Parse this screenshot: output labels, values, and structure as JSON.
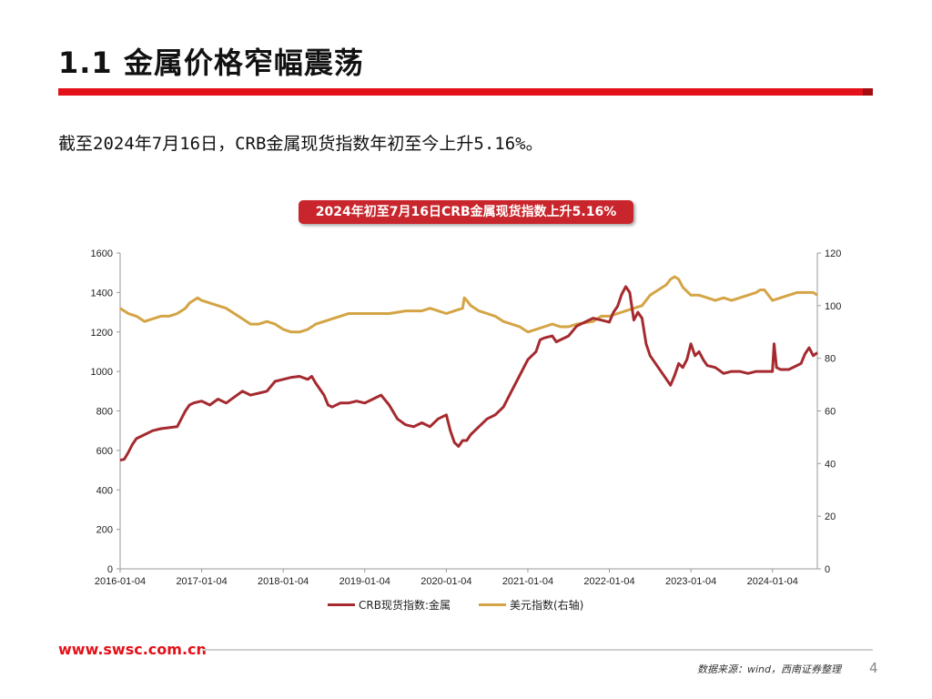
{
  "header": {
    "title": "1.1 金属价格窄幅震荡",
    "description": "截至2024年7月16日，CRB金属现货指数年初至今上升5.16%。"
  },
  "chart_badge": "2024年初至7月16日CRB金属现货指数上升5.16%",
  "footer": {
    "url": "www.swsc.com.cn",
    "source": "数据来源：wind，西南证券整理",
    "page": "4"
  },
  "colors": {
    "accent": "#e3111a",
    "crb_line": "#a52a2f",
    "usd_line": "#d4a445"
  },
  "chart_data": {
    "type": "line",
    "title": "2024年初至7月16日CRB金属现货指数上升5.16%",
    "x_tick_labels": [
      "2016-01-04",
      "2017-01-04",
      "2018-01-04",
      "2019-01-04",
      "2020-01-04",
      "2021-01-04",
      "2022-01-04",
      "2023-01-04",
      "2024-01-04"
    ],
    "x_range": [
      2016.0,
      2024.55
    ],
    "left_axis": {
      "ylim": [
        0,
        1600
      ],
      "ticks": [
        0,
        200,
        400,
        600,
        800,
        1000,
        1200,
        1400,
        1600
      ]
    },
    "right_axis": {
      "ylim": [
        0,
        120
      ],
      "ticks": [
        0,
        20,
        40,
        60,
        80,
        100,
        120
      ]
    },
    "legend_position": "bottom",
    "series": [
      {
        "name": "CRB现货指数:金属",
        "axis": "left",
        "x": [
          2016.0,
          2016.05,
          2016.1,
          2016.15,
          2016.2,
          2016.3,
          2016.4,
          2016.5,
          2016.6,
          2016.7,
          2016.8,
          2016.85,
          2016.9,
          2016.95,
          2017.0,
          2017.1,
          2017.2,
          2017.3,
          2017.4,
          2017.5,
          2017.6,
          2017.7,
          2017.8,
          2017.9,
          2018.0,
          2018.05,
          2018.1,
          2018.2,
          2018.3,
          2018.35,
          2018.4,
          2018.5,
          2018.55,
          2018.6,
          2018.7,
          2018.8,
          2018.9,
          2019.0,
          2019.1,
          2019.2,
          2019.3,
          2019.4,
          2019.5,
          2019.6,
          2019.7,
          2019.8,
          2019.9,
          2020.0,
          2020.05,
          2020.1,
          2020.15,
          2020.2,
          2020.25,
          2020.3,
          2020.4,
          2020.5,
          2020.6,
          2020.7,
          2020.8,
          2020.9,
          2021.0,
          2021.1,
          2021.15,
          2021.2,
          2021.3,
          2021.35,
          2021.4,
          2021.5,
          2021.6,
          2021.7,
          2021.8,
          2021.9,
          2022.0,
          2022.05,
          2022.1,
          2022.15,
          2022.2,
          2022.25,
          2022.3,
          2022.35,
          2022.4,
          2022.45,
          2022.5,
          2022.55,
          2022.6,
          2022.7,
          2022.75,
          2022.8,
          2022.85,
          2022.9,
          2022.95,
          2023.0,
          2023.05,
          2023.1,
          2023.15,
          2023.2,
          2023.3,
          2023.4,
          2023.5,
          2023.6,
          2023.7,
          2023.8,
          2023.9,
          2024.0,
          2024.02,
          2024.05,
          2024.1,
          2024.2,
          2024.3,
          2024.35,
          2024.4,
          2024.45,
          2024.5,
          2024.55
        ],
        "values": [
          550,
          555,
          590,
          630,
          660,
          680,
          700,
          710,
          715,
          720,
          800,
          830,
          840,
          845,
          850,
          830,
          860,
          840,
          870,
          900,
          880,
          890,
          900,
          950,
          960,
          965,
          970,
          975,
          960,
          975,
          940,
          880,
          830,
          820,
          840,
          840,
          850,
          840,
          860,
          880,
          830,
          760,
          730,
          720,
          740,
          720,
          760,
          780,
          700,
          640,
          620,
          650,
          650,
          680,
          720,
          760,
          780,
          820,
          900,
          980,
          1060,
          1100,
          1160,
          1170,
          1180,
          1150,
          1160,
          1180,
          1230,
          1250,
          1270,
          1260,
          1250,
          1300,
          1330,
          1390,
          1430,
          1400,
          1260,
          1300,
          1270,
          1140,
          1080,
          1050,
          1020,
          960,
          930,
          980,
          1040,
          1020,
          1060,
          1140,
          1080,
          1100,
          1060,
          1030,
          1020,
          990,
          1000,
          1000,
          990,
          1000,
          1000,
          1000,
          1140,
          1020,
          1010,
          1010,
          1030,
          1040,
          1090,
          1120,
          1080,
          1095
        ]
      },
      {
        "name": "美元指数(右轴)",
        "axis": "right",
        "x": [
          2016.0,
          2016.1,
          2016.2,
          2016.3,
          2016.4,
          2016.5,
          2016.6,
          2016.7,
          2016.8,
          2016.85,
          2016.9,
          2016.95,
          2017.0,
          2017.1,
          2017.2,
          2017.3,
          2017.4,
          2017.5,
          2017.6,
          2017.7,
          2017.8,
          2017.9,
          2018.0,
          2018.1,
          2018.2,
          2018.3,
          2018.4,
          2018.5,
          2018.6,
          2018.7,
          2018.8,
          2018.9,
          2019.0,
          2019.1,
          2019.2,
          2019.3,
          2019.4,
          2019.5,
          2019.6,
          2019.7,
          2019.8,
          2019.9,
          2020.0,
          2020.1,
          2020.2,
          2020.22,
          2020.25,
          2020.3,
          2020.4,
          2020.5,
          2020.6,
          2020.7,
          2020.8,
          2020.9,
          2021.0,
          2021.1,
          2021.2,
          2021.3,
          2021.4,
          2021.5,
          2021.6,
          2021.7,
          2021.8,
          2021.9,
          2022.0,
          2022.1,
          2022.2,
          2022.3,
          2022.4,
          2022.5,
          2022.6,
          2022.7,
          2022.75,
          2022.8,
          2022.85,
          2022.9,
          2023.0,
          2023.1,
          2023.2,
          2023.3,
          2023.4,
          2023.5,
          2023.6,
          2023.7,
          2023.8,
          2023.85,
          2023.9,
          2024.0,
          2024.1,
          2024.2,
          2024.3,
          2024.4,
          2024.5,
          2024.55
        ],
        "values": [
          99,
          97,
          96,
          94,
          95,
          96,
          96,
          97,
          99,
          101,
          102,
          103,
          102,
          101,
          100,
          99,
          97,
          95,
          93,
          93,
          94,
          93,
          91,
          90,
          90,
          91,
          93,
          94,
          95,
          96,
          97,
          97,
          97,
          97,
          97,
          97,
          97.5,
          98,
          98,
          98,
          99,
          98,
          97,
          98,
          99,
          103,
          102,
          100,
          98,
          97,
          96,
          94,
          93,
          92,
          90,
          91,
          92,
          93,
          92,
          92,
          93,
          93.5,
          94,
          96,
          96,
          97,
          98,
          99,
          100,
          104,
          106,
          108,
          110,
          111,
          110,
          107,
          104,
          104,
          103,
          102,
          103,
          102,
          103,
          104,
          105,
          106,
          106,
          102,
          103,
          104,
          105,
          105,
          105,
          104
        ]
      }
    ]
  }
}
